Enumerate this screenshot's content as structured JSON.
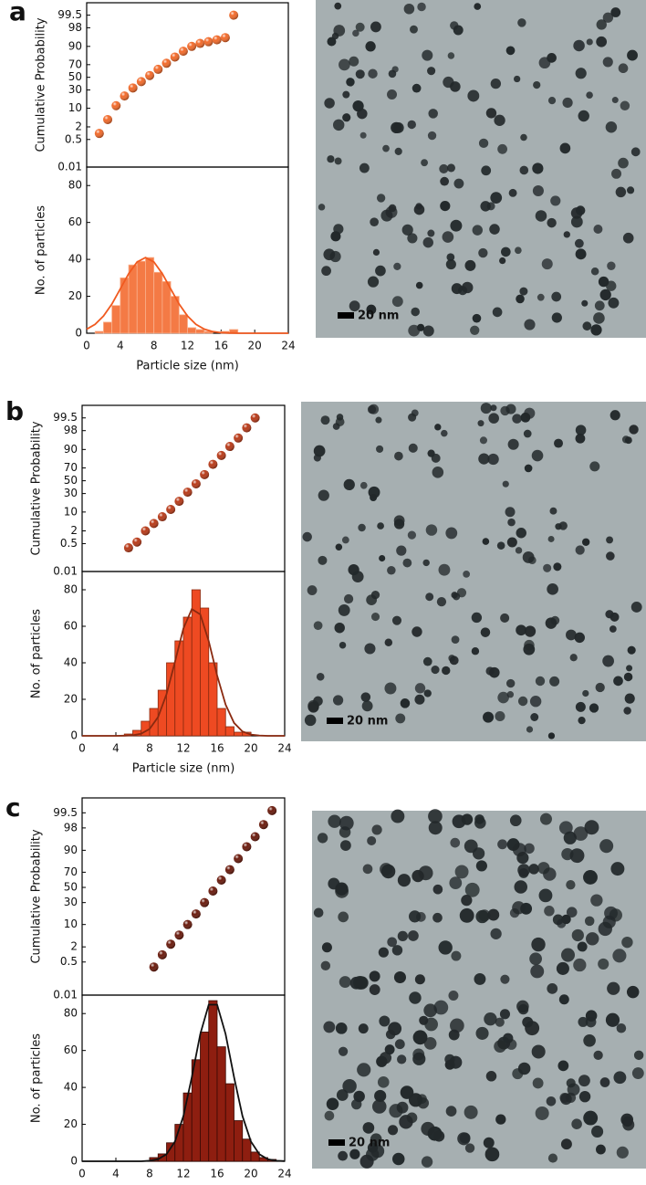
{
  "panels": [
    {
      "label": "a",
      "scale_bar": "20 nm"
    },
    {
      "label": "b",
      "scale_bar": "20 nm"
    },
    {
      "label": "c",
      "scale_bar": "20 nm"
    }
  ],
  "chart_data": [
    {
      "type": "scatter",
      "y_scale": "probit",
      "ylabel": "Cumulative Probability",
      "color": "#f26a2a",
      "xlim": [
        0,
        24
      ],
      "ylim": [
        0.01,
        99.9
      ],
      "yticks": [
        0.01,
        0.5,
        2,
        10,
        30,
        50,
        70,
        90,
        98,
        99.5
      ],
      "x": [
        1.5,
        2.5,
        3.5,
        4.5,
        5.5,
        6.5,
        7.5,
        8.5,
        9.5,
        10.5,
        11.5,
        12.5,
        13.5,
        14.5,
        15.5,
        16.5,
        17.5
      ],
      "values": [
        1,
        4,
        12,
        22,
        33,
        43,
        53,
        63,
        72,
        80,
        86,
        90,
        92,
        93,
        94,
        95,
        99.5
      ]
    },
    {
      "type": "histogram",
      "xlabel": "Particle size (nm)",
      "ylabel": "No. of particles",
      "color": "#f47a45",
      "edge": "#f9b08c",
      "xlim": [
        0,
        24
      ],
      "ylim": [
        0,
        90
      ],
      "xticks": [
        0,
        4,
        8,
        12,
        16,
        20,
        24
      ],
      "yticks": [
        0,
        20,
        40,
        60,
        80
      ],
      "bins": [
        0,
        1,
        2,
        3,
        4,
        5,
        6,
        7,
        8,
        9,
        10,
        11,
        12,
        13,
        14,
        15,
        16,
        17,
        18,
        19,
        20,
        21,
        22,
        23,
        24
      ],
      "counts": [
        0,
        1,
        6,
        15,
        30,
        37,
        39,
        41,
        33,
        28,
        20,
        10,
        3,
        2,
        1,
        0,
        1,
        2,
        0,
        0,
        0,
        0,
        0,
        0
      ],
      "fit": {
        "color": "#f05a20",
        "x": [
          0,
          1,
          2,
          3,
          4,
          5,
          6,
          7,
          8,
          9,
          10,
          11,
          12,
          13,
          14,
          15,
          16,
          17,
          18,
          19,
          20,
          21,
          22,
          23,
          24
        ],
        "values": [
          2.2,
          4.8,
          9.3,
          15.8,
          24,
          32.3,
          38.6,
          41,
          38.6,
          32.3,
          24,
          15.8,
          9.3,
          4.8,
          2.2,
          0.9,
          0.3,
          0.1,
          0,
          0,
          0,
          0,
          0,
          0,
          0
        ]
      }
    },
    {
      "type": "scatter",
      "y_scale": "probit",
      "ylabel": "Cumulative Probability",
      "color": "#b83a18",
      "xlim": [
        0,
        24
      ],
      "ylim": [
        0.01,
        99.9
      ],
      "yticks": [
        0.01,
        0.5,
        2,
        10,
        30,
        50,
        70,
        90,
        98,
        99.5
      ],
      "x": [
        5.5,
        6.5,
        7.5,
        8.5,
        9.5,
        10.5,
        11.5,
        12.5,
        13.5,
        14.5,
        15.5,
        16.5,
        17.5,
        18.5,
        19.5,
        20.5
      ],
      "values": [
        0.3,
        0.6,
        2,
        4,
        7,
        12,
        20,
        32,
        45,
        60,
        75,
        85,
        92,
        96,
        98.5,
        99.5
      ]
    },
    {
      "type": "histogram",
      "xlabel": "Particle size (nm)",
      "ylabel": "No. of particles",
      "color": "#ee4a22",
      "edge": "#8a2a10",
      "xlim": [
        0,
        24
      ],
      "ylim": [
        0,
        90
      ],
      "xticks": [
        0,
        4,
        8,
        12,
        16,
        20,
        24
      ],
      "yticks": [
        0,
        20,
        40,
        60,
        80
      ],
      "bins": [
        0,
        1,
        2,
        3,
        4,
        5,
        6,
        7,
        8,
        9,
        10,
        11,
        12,
        13,
        14,
        15,
        16,
        17,
        18,
        19,
        20,
        21,
        22,
        23,
        24
      ],
      "counts": [
        0,
        0,
        0,
        0,
        0,
        1,
        3,
        8,
        15,
        25,
        40,
        52,
        65,
        80,
        70,
        40,
        15,
        5,
        2,
        2,
        0,
        0,
        0,
        0
      ],
      "fit": {
        "color": "#8a2a10",
        "x": [
          0,
          1,
          2,
          3,
          4,
          5,
          6,
          7,
          8,
          9,
          10,
          11,
          12,
          13,
          14,
          15,
          16,
          17,
          18,
          19,
          20,
          21,
          22,
          23,
          24
        ],
        "values": [
          0,
          0,
          0,
          0,
          0,
          0.1,
          0.3,
          1.2,
          3.8,
          10.3,
          22.8,
          40.5,
          58.8,
          69.4,
          66.5,
          51.9,
          33,
          17.1,
          7.1,
          2.4,
          0.7,
          0.2,
          0,
          0,
          0
        ]
      }
    },
    {
      "type": "scatter",
      "y_scale": "probit",
      "ylabel": "Cumulative Probability",
      "color": "#6a1a0c",
      "xlim": [
        0,
        24
      ],
      "ylim": [
        0.01,
        99.9
      ],
      "yticks": [
        0.01,
        0.5,
        2,
        10,
        30,
        50,
        70,
        90,
        98,
        99.5
      ],
      "x": [
        8.5,
        9.5,
        10.5,
        11.5,
        12.5,
        13.5,
        14.5,
        15.5,
        16.5,
        17.5,
        18.5,
        19.5,
        20.5,
        21.5,
        22.5
      ],
      "values": [
        0.3,
        1,
        2.5,
        5,
        10,
        18,
        30,
        45,
        60,
        73,
        84,
        92,
        96,
        98.5,
        99.6
      ]
    },
    {
      "type": "histogram",
      "xlabel": "Particle size (nm)",
      "ylabel": "No. of particles",
      "color": "#8e1e10",
      "edge": "#3a0a04",
      "xlim": [
        0,
        24
      ],
      "ylim": [
        0,
        90
      ],
      "xticks": [
        0,
        4,
        8,
        12,
        16,
        20,
        24
      ],
      "yticks": [
        0,
        20,
        40,
        60,
        80
      ],
      "bins": [
        0,
        1,
        2,
        3,
        4,
        5,
        6,
        7,
        8,
        9,
        10,
        11,
        12,
        13,
        14,
        15,
        16,
        17,
        18,
        19,
        20,
        21,
        22,
        23,
        24
      ],
      "counts": [
        0,
        0,
        0,
        0,
        0,
        0,
        0,
        0,
        2,
        4,
        10,
        20,
        37,
        55,
        70,
        87,
        62,
        42,
        22,
        12,
        5,
        2,
        1,
        0
      ],
      "fit": {
        "color": "#111111",
        "x": [
          0,
          1,
          2,
          3,
          4,
          5,
          6,
          7,
          8,
          9,
          10,
          11,
          12,
          13,
          14,
          15,
          16,
          17,
          18,
          19,
          20,
          21,
          22,
          23,
          24
        ],
        "values": [
          0,
          0,
          0,
          0,
          0,
          0,
          0,
          0,
          0.3,
          1.1,
          3.8,
          10.7,
          24.5,
          45.6,
          68.9,
          84.8,
          84.8,
          68.9,
          45.6,
          24.5,
          10.7,
          3.8,
          1.1,
          0.3,
          0.1
        ]
      }
    }
  ]
}
